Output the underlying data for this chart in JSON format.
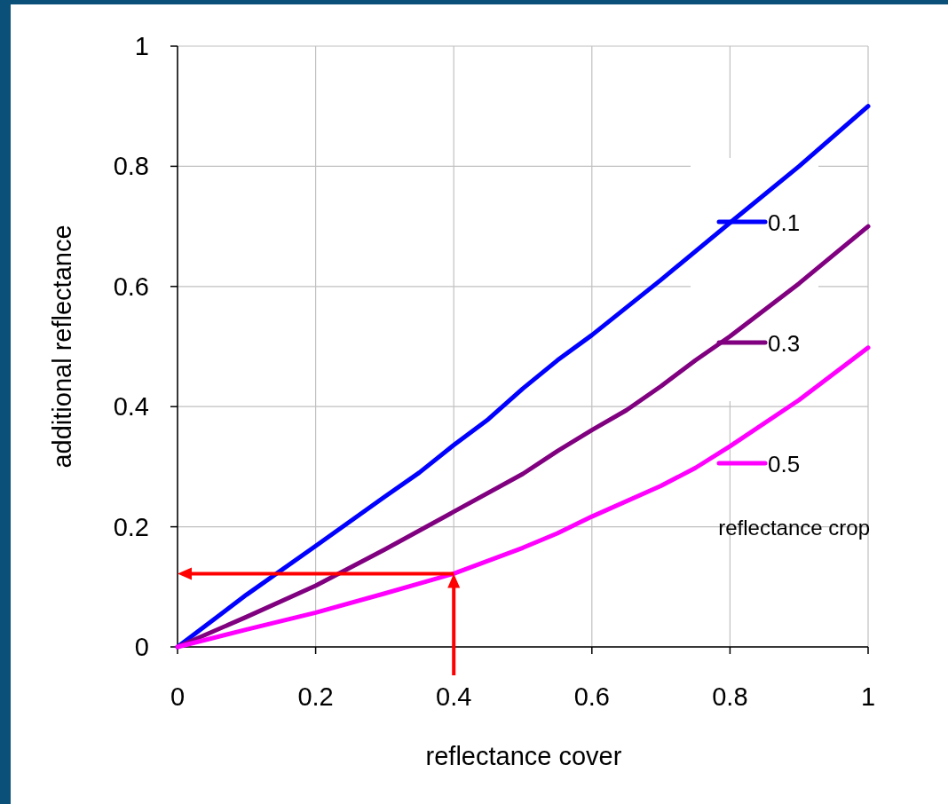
{
  "chart_data": {
    "type": "line",
    "xlabel": "reflectance cover",
    "ylabel": "additional reflectance",
    "legend_title": "reflectance crop",
    "legend": "right",
    "grid": true,
    "line_style": "solid",
    "xlim": [
      0,
      1
    ],
    "ylim": [
      0,
      1
    ],
    "xticks": [
      0,
      0.2,
      0.4,
      0.6,
      0.8,
      1
    ],
    "yticks": [
      0,
      0.2,
      0.4,
      0.6,
      0.8,
      1
    ],
    "series": [
      {
        "name": "0.1",
        "color": "#0000ff",
        "x": [
          0,
          0.1,
          0.2,
          0.3,
          0.35,
          0.4,
          0.45,
          0.5,
          0.55,
          0.6,
          0.7,
          0.8,
          0.9,
          1
        ],
        "values": [
          0,
          0.087,
          0.168,
          0.25,
          0.29,
          0.336,
          0.379,
          0.43,
          0.477,
          0.519,
          0.611,
          0.706,
          0.8,
          0.9
        ]
      },
      {
        "name": "0.3",
        "color": "#800080",
        "x": [
          0,
          0.1,
          0.2,
          0.3,
          0.4,
          0.5,
          0.55,
          0.6,
          0.65,
          0.7,
          0.75,
          0.8,
          0.9,
          1
        ],
        "values": [
          0,
          0.05,
          0.102,
          0.162,
          0.225,
          0.288,
          0.326,
          0.361,
          0.394,
          0.434,
          0.477,
          0.517,
          0.605,
          0.7
        ]
      },
      {
        "name": "0.5",
        "color": "#ff00ff",
        "x": [
          0,
          0.1,
          0.2,
          0.3,
          0.4,
          0.5,
          0.55,
          0.6,
          0.7,
          0.75,
          0.8,
          0.9,
          1
        ],
        "values": [
          0,
          0.029,
          0.057,
          0.089,
          0.122,
          0.165,
          0.189,
          0.217,
          0.268,
          0.298,
          0.334,
          0.411,
          0.498
        ]
      }
    ],
    "ref_lines": [
      {
        "axis": "x",
        "value": 0.4,
        "color": "#ff0000"
      },
      {
        "axis": "y",
        "value": 0.122,
        "color": "#ff0000"
      }
    ]
  }
}
